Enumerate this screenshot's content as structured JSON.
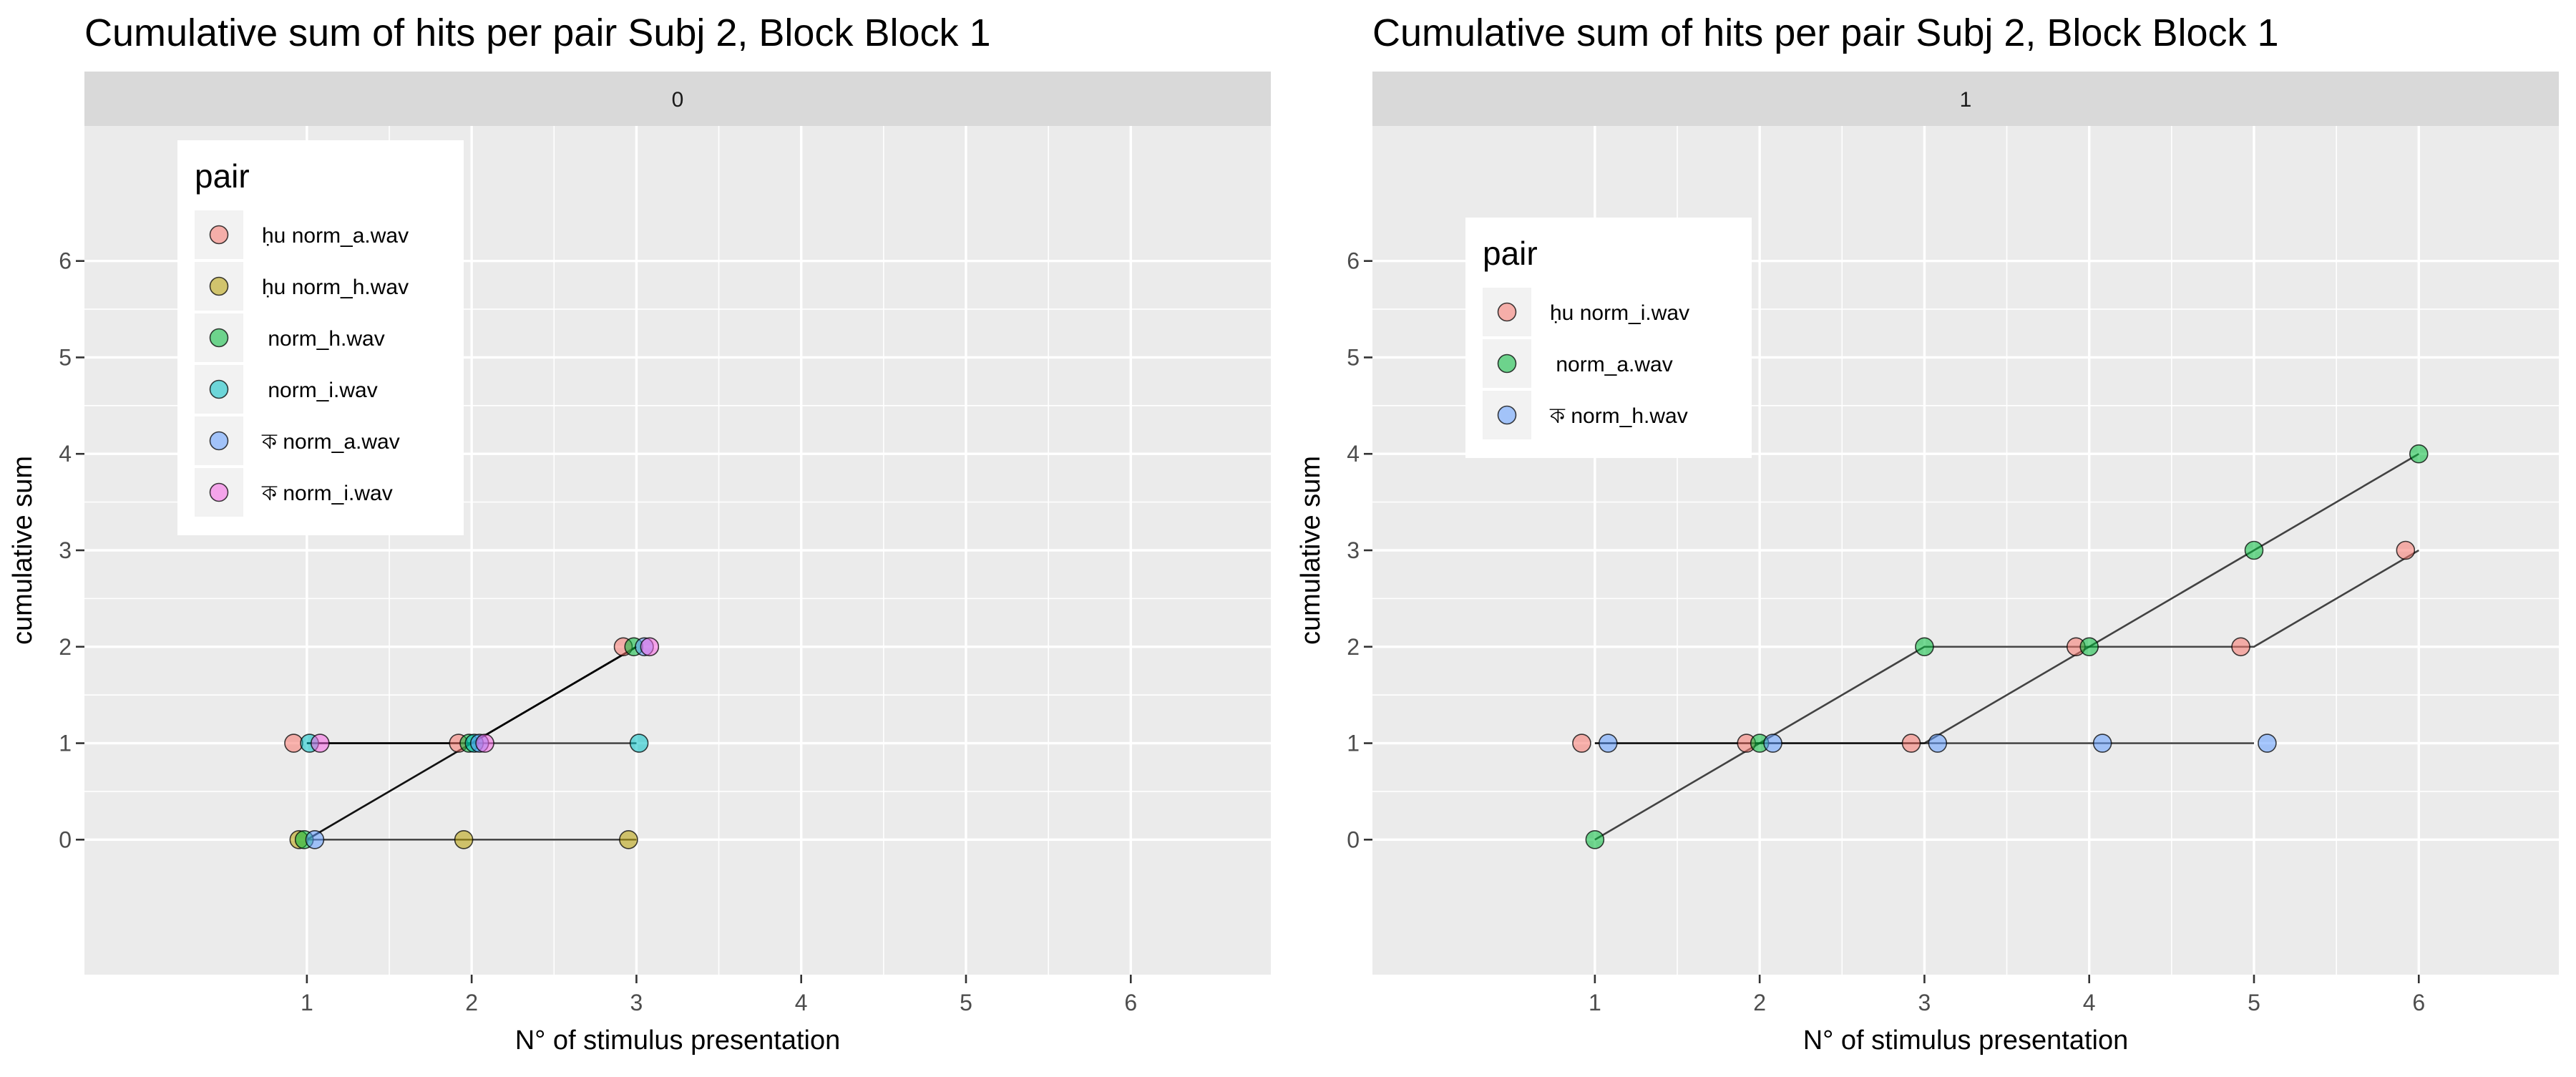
{
  "chart_data": [
    {
      "type": "scatter",
      "title": "Cumulative sum of hits per pair Subj 2, Block Block 1",
      "facet_label": "0",
      "xlabel": "N° of stimulus presentation",
      "ylabel": "cumulative sum",
      "xlim": [
        -0.35,
        6.85
      ],
      "ylim": [
        -1.4,
        7.4
      ],
      "xticks": [
        1,
        2,
        3,
        4,
        5,
        6
      ],
      "yticks": [
        0,
        1,
        2,
        3,
        4,
        5,
        6
      ],
      "grid": true,
      "legend": {
        "title": "pair",
        "position": "top-left"
      },
      "series": [
        {
          "name": "ḥu norm_a.wav",
          "color": "#F8766D",
          "points": [
            {
              "x": 1,
              "y": 1
            },
            {
              "x": 2,
              "y": 1
            },
            {
              "x": 3,
              "y": 2
            }
          ]
        },
        {
          "name": "ḥu norm_h.wav",
          "color": "#B79F00",
          "points": [
            {
              "x": 1,
              "y": 0
            },
            {
              "x": 2,
              "y": 0
            },
            {
              "x": 3,
              "y": 0
            }
          ]
        },
        {
          "name": "঑ norm_h.wav",
          "color": "#00BA38",
          "points": [
            {
              "x": 1,
              "y": 0
            },
            {
              "x": 2,
              "y": 1
            },
            {
              "x": 3,
              "y": 2
            }
          ]
        },
        {
          "name": "঑ norm_i.wav",
          "color": "#00BFC4",
          "points": [
            {
              "x": 1,
              "y": 1
            },
            {
              "x": 2,
              "y": 1
            },
            {
              "x": 3,
              "y": 1
            }
          ]
        },
        {
          "name": "ক norm_a.wav",
          "color": "#619CFF",
          "points": [
            {
              "x": 1,
              "y": 0
            },
            {
              "x": 2,
              "y": 1
            },
            {
              "x": 3,
              "y": 2
            }
          ]
        },
        {
          "name": "ক norm_i.wav",
          "color": "#F564E3",
          "points": [
            {
              "x": 1,
              "y": 1
            },
            {
              "x": 2,
              "y": 1
            },
            {
              "x": 3,
              "y": 2
            }
          ]
        }
      ]
    },
    {
      "type": "scatter",
      "title": "Cumulative sum of hits per pair Subj 2, Block Block 1",
      "facet_label": "1",
      "xlabel": "N° of stimulus presentation",
      "ylabel": "cumulative sum",
      "xlim": [
        -0.35,
        6.85
      ],
      "ylim": [
        -1.4,
        7.4
      ],
      "xticks": [
        1,
        2,
        3,
        4,
        5,
        6
      ],
      "yticks": [
        0,
        1,
        2,
        3,
        4,
        5,
        6
      ],
      "grid": true,
      "legend": {
        "title": "pair",
        "position": "top-left"
      },
      "series": [
        {
          "name": "ḥu norm_i.wav",
          "color": "#F8766D",
          "points": [
            {
              "x": 1,
              "y": 1
            },
            {
              "x": 2,
              "y": 1
            },
            {
              "x": 3,
              "y": 1
            },
            {
              "x": 4,
              "y": 2
            },
            {
              "x": 5,
              "y": 2
            },
            {
              "x": 6,
              "y": 3
            }
          ]
        },
        {
          "name": "঑ norm_a.wav",
          "color": "#00BA38",
          "points": [
            {
              "x": 1,
              "y": 0
            },
            {
              "x": 2,
              "y": 1
            },
            {
              "x": 3,
              "y": 2
            },
            {
              "x": 4,
              "y": 2
            },
            {
              "x": 5,
              "y": 3
            },
            {
              "x": 6,
              "y": 4
            }
          ]
        },
        {
          "name": "ক norm_h.wav",
          "color": "#619CFF",
          "points": [
            {
              "x": 1,
              "y": 1
            },
            {
              "x": 2,
              "y": 1
            },
            {
              "x": 3,
              "y": 1
            },
            {
              "x": 4,
              "y": 1
            },
            {
              "x": 5,
              "y": 1
            }
          ]
        }
      ]
    }
  ]
}
